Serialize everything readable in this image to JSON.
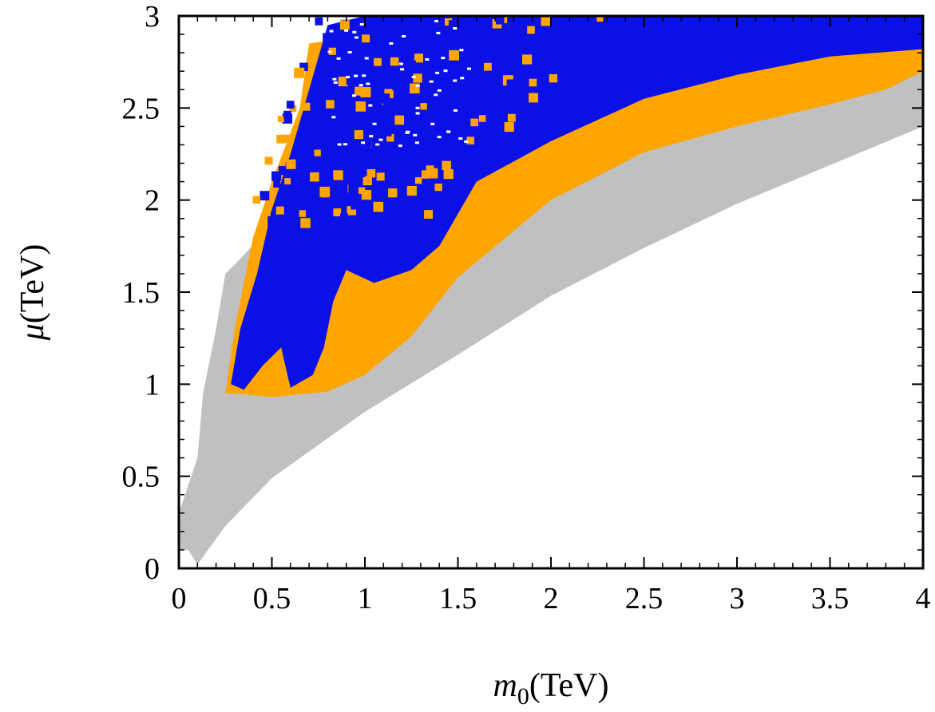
{
  "chart_data": {
    "type": "scatter",
    "title": "",
    "xlabel": {
      "symbol": "m",
      "subscript": "0",
      "unit": "(TeV)"
    },
    "ylabel": {
      "symbol": "μ",
      "unit": "(TeV)"
    },
    "xlim": [
      0,
      4
    ],
    "ylim": [
      0,
      3
    ],
    "grid": false,
    "legend": "none",
    "x_ticks": [
      0,
      0.5,
      1,
      1.5,
      2,
      2.5,
      3,
      3.5,
      4
    ],
    "x_tick_labels": [
      "0",
      "0.5",
      "1",
      "1.5",
      "2",
      "2.5",
      "3",
      "3.5",
      "4"
    ],
    "y_ticks": [
      0,
      0.5,
      1,
      1.5,
      2,
      2.5,
      3
    ],
    "y_tick_labels": [
      "0",
      "0.5",
      "1",
      "1.5",
      "2",
      "2.5",
      "3"
    ],
    "series": [
      {
        "name": "gray",
        "color": "#c0c0c0",
        "region": [
          [
            0.0,
            0.1
          ],
          [
            0.0,
            0.3
          ],
          [
            0.1,
            0.6
          ],
          [
            0.13,
            0.95
          ],
          [
            0.2,
            1.3
          ],
          [
            0.25,
            1.6
          ],
          [
            0.33,
            1.68
          ],
          [
            0.7,
            2.1
          ],
          [
            1.5,
            2.6
          ],
          [
            3.0,
            2.9
          ],
          [
            4.0,
            2.92
          ],
          [
            4.0,
            2.4
          ],
          [
            3.0,
            1.98
          ],
          [
            2.5,
            1.74
          ],
          [
            2.0,
            1.48
          ],
          [
            1.5,
            1.16
          ],
          [
            1.0,
            0.85
          ],
          [
            0.5,
            0.49
          ],
          [
            0.25,
            0.23
          ],
          [
            0.1,
            0.02
          ],
          [
            0.05,
            0.1
          ]
        ]
      },
      {
        "name": "orange",
        "color": "#ffa500",
        "region": [
          [
            0.25,
            0.95
          ],
          [
            0.3,
            1.3
          ],
          [
            0.4,
            1.8
          ],
          [
            0.5,
            2.1
          ],
          [
            0.65,
            2.5
          ],
          [
            0.7,
            2.85
          ],
          [
            1.0,
            2.9
          ],
          [
            2.0,
            2.95
          ],
          [
            3.0,
            2.97
          ],
          [
            4.0,
            2.98
          ],
          [
            4.0,
            2.7
          ],
          [
            3.8,
            2.6
          ],
          [
            3.5,
            2.52
          ],
          [
            3.0,
            2.4
          ],
          [
            2.5,
            2.26
          ],
          [
            2.0,
            2.0
          ],
          [
            1.5,
            1.58
          ],
          [
            1.25,
            1.26
          ],
          [
            1.0,
            1.05
          ],
          [
            0.8,
            0.96
          ],
          [
            0.5,
            0.93
          ],
          [
            0.3,
            0.95
          ]
        ]
      },
      {
        "name": "blue",
        "color": "#0a10e6",
        "region": [
          [
            0.28,
            1.0
          ],
          [
            0.33,
            1.3
          ],
          [
            0.42,
            1.6
          ],
          [
            0.5,
            1.95
          ],
          [
            0.6,
            2.25
          ],
          [
            0.7,
            2.6
          ],
          [
            0.8,
            2.95
          ],
          [
            1.0,
            3.0
          ],
          [
            2.0,
            3.0
          ],
          [
            3.0,
            3.0
          ],
          [
            4.0,
            3.0
          ],
          [
            4.0,
            2.82
          ],
          [
            3.5,
            2.78
          ],
          [
            3.0,
            2.68
          ],
          [
            2.5,
            2.55
          ],
          [
            2.0,
            2.32
          ],
          [
            1.6,
            2.1
          ],
          [
            1.4,
            1.75
          ],
          [
            1.25,
            1.62
          ],
          [
            1.05,
            1.55
          ],
          [
            0.9,
            1.62
          ],
          [
            0.83,
            1.45
          ],
          [
            0.78,
            1.2
          ],
          [
            0.72,
            1.05
          ],
          [
            0.6,
            0.98
          ],
          [
            0.55,
            1.2
          ],
          [
            0.45,
            1.1
          ],
          [
            0.35,
            0.97
          ]
        ]
      }
    ]
  }
}
